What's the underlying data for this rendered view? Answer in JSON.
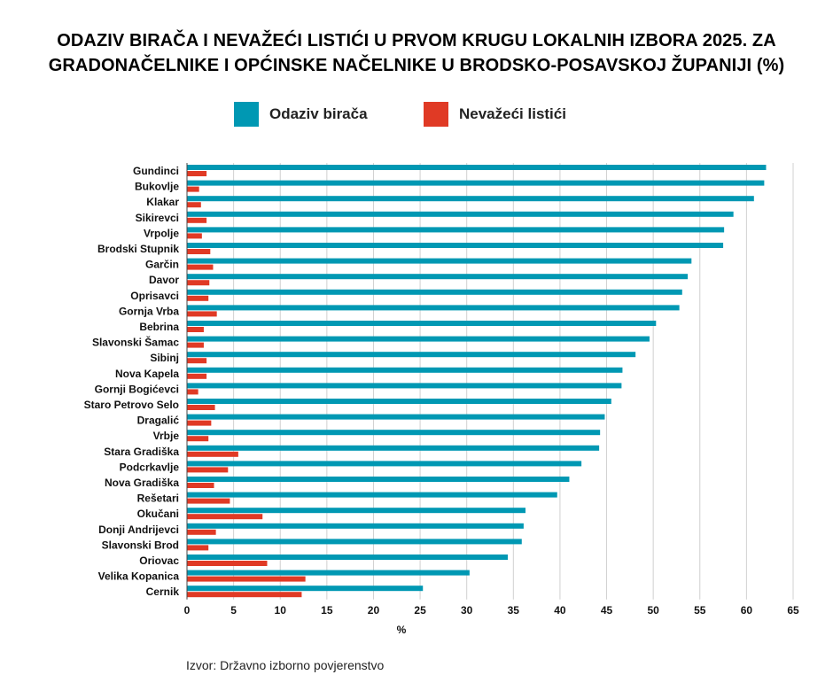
{
  "title_line1": "ODAZIV BIRAČA I NEVAŽEĆI LISTIĆI U PRVOM KRUGU LOKALNIH IZBORA 2025. ZA",
  "title_line2": "GRADONAČELNIKE I OPĆINSKE NAČELNIKE U BRODSKO-POSAVSKOJ ŽUPANIJI (%)",
  "source": "Izvor: Državno izborno povjerenstvo",
  "colors": {
    "turnout": "#0098b3",
    "invalid": "#e03a25",
    "grid": "#d0d0d0"
  },
  "chart_data": {
    "type": "bar",
    "orientation": "horizontal",
    "xlabel": "%",
    "xlim": [
      0,
      65
    ],
    "xticks": [
      "0",
      "5",
      "10",
      "15",
      "20",
      "25",
      "30",
      "35",
      "40",
      "45",
      "50",
      "55",
      "60",
      "65"
    ],
    "grid": true,
    "legend_position": "top",
    "categories": [
      "Gundinci",
      "Bukovlje",
      "Klakar",
      "Sikirevci",
      "Vrpolje",
      "Brodski Stupnik",
      "Garčin",
      "Davor",
      "Oprisavci",
      "Gornja Vrba",
      "Bebrina",
      "Slavonski Šamac",
      "Sibinj",
      "Nova Kapela",
      "Gornji Bogićevci",
      "Staro Petrovo Selo",
      "Dragalić",
      "Vrbje",
      "Stara Gradiška",
      "Podcrkavlje",
      "Nova Gradiška",
      "Rešetari",
      "Okučani",
      "Donji Andrijevci",
      "Slavonski Brod",
      "Oriovac",
      "Velika Kopanica",
      "Cernik"
    ],
    "series": [
      {
        "name": "Odaziv birača",
        "values": [
          62.1,
          61.9,
          60.8,
          58.6,
          57.6,
          57.5,
          54.1,
          53.7,
          53.1,
          52.8,
          50.3,
          49.6,
          48.1,
          46.7,
          46.6,
          45.5,
          44.8,
          44.3,
          44.2,
          42.3,
          41.0,
          39.7,
          36.3,
          36.1,
          35.9,
          34.4,
          30.3,
          25.3
        ]
      },
      {
        "name": "Nevažeći listići",
        "values": [
          2.1,
          1.3,
          1.5,
          2.1,
          1.6,
          2.5,
          2.8,
          2.4,
          2.3,
          3.2,
          1.8,
          1.8,
          2.1,
          2.1,
          1.2,
          3.0,
          2.6,
          2.3,
          5.5,
          4.4,
          2.9,
          4.6,
          8.1,
          3.1,
          2.3,
          8.6,
          12.7,
          12.3
        ]
      }
    ]
  }
}
